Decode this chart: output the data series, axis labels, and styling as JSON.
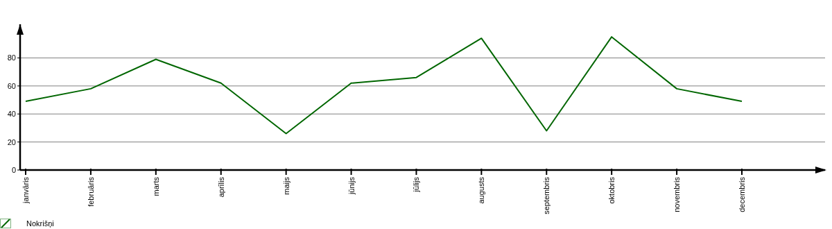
{
  "chart_data": {
    "type": "line",
    "categories": [
      "janvāris",
      "februāris",
      "marts",
      "aprīlis",
      "maijs",
      "jūnijs",
      "jūlijs",
      "augusts",
      "septembris",
      "oktobris",
      "novembris",
      "decembris"
    ],
    "series": [
      {
        "name": "Nokrišņi",
        "color": "#006600",
        "values": [
          49,
          58,
          79,
          62,
          26,
          62,
          66,
          94,
          28,
          95,
          58,
          49
        ]
      }
    ],
    "ylim": [
      0,
      104
    ],
    "yticks": [
      0,
      20,
      40,
      60,
      80
    ],
    "grid": "y",
    "legend": "bottom left",
    "marker": "none",
    "line_style": "solid"
  }
}
